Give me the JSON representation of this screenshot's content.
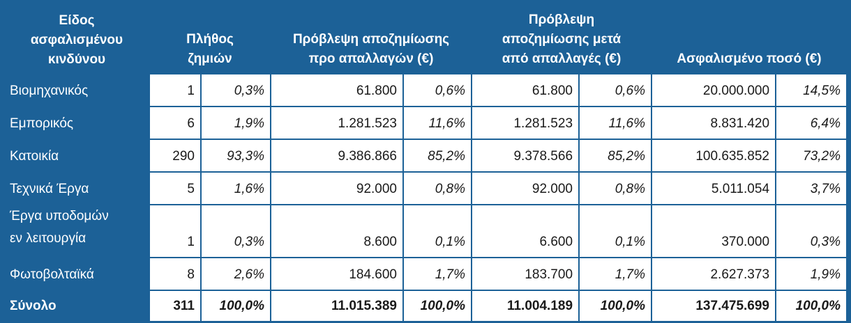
{
  "headers": {
    "type": "Είδος\nασφαλισμένου\nκινδύνου",
    "count": "Πλήθος\nζημιών",
    "before": "Πρόβλεψη αποζημίωσης\nπρο απαλλαγών (€)",
    "after": "Πρόβλεψη\nαποζημίωσης μετά\nαπό απαλλαγές (€)",
    "insured": "Ασφαλισμένο ποσό (€)"
  },
  "rows": [
    {
      "name": "Βιομηχανικός",
      "count": "1",
      "count_pct": "0,3%",
      "before": "61.800",
      "before_pct": "0,6%",
      "after": "61.800",
      "after_pct": "0,6%",
      "insured": "20.000.000",
      "insured_pct": "14,5%"
    },
    {
      "name": "Εμπορικός",
      "count": "6",
      "count_pct": "1,9%",
      "before": "1.281.523",
      "before_pct": "11,6%",
      "after": "1.281.523",
      "after_pct": "11,6%",
      "insured": "8.831.420",
      "insured_pct": "6,4%"
    },
    {
      "name": "Κατοικία",
      "count": "290",
      "count_pct": "93,3%",
      "before": "9.386.866",
      "before_pct": "85,2%",
      "after": "9.378.566",
      "after_pct": "85,2%",
      "insured": "100.635.852",
      "insured_pct": "73,2%"
    },
    {
      "name": "Τεχνικά Έργα",
      "count": "5",
      "count_pct": "1,6%",
      "before": "92.000",
      "before_pct": "0,8%",
      "after": "92.000",
      "after_pct": "0,8%",
      "insured": "5.011.054",
      "insured_pct": "3,7%"
    },
    {
      "name": "Έργα υποδομών\nεν λειτουργία",
      "count": "1",
      "count_pct": "0,3%",
      "before": "8.600",
      "before_pct": "0,1%",
      "after": "6.600",
      "after_pct": "0,1%",
      "insured": "370.000",
      "insured_pct": "0,3%"
    },
    {
      "name": "Φωτοβολταϊκά",
      "count": "8",
      "count_pct": "2,6%",
      "before": "184.600",
      "before_pct": "1,7%",
      "after": "183.700",
      "after_pct": "1,7%",
      "insured": "2.627.373",
      "insured_pct": "1,9%"
    }
  ],
  "total": {
    "name": "Σύνολο",
    "count": "311",
    "count_pct": "100,0%",
    "before": "11.015.389",
    "before_pct": "100,0%",
    "after": "11.004.189",
    "after_pct": "100,0%",
    "insured": "137.475.699",
    "insured_pct": "100,0%"
  }
}
